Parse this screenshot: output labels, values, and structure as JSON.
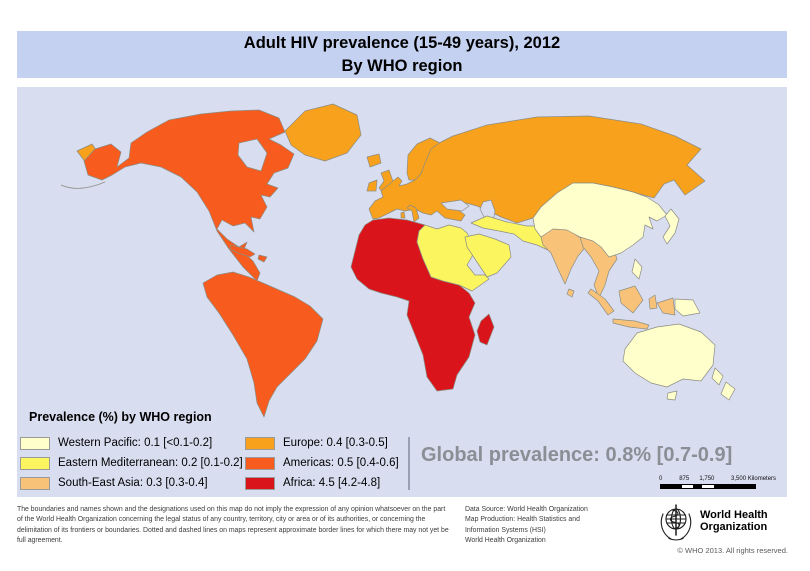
{
  "title": {
    "line1": "Adult HIV prevalence (15-49 years), 2012",
    "line2": "By WHO region"
  },
  "legend": {
    "title": "Prevalence (%) by WHO region",
    "columns": [
      [
        {
          "label": "Western Pacific: 0.1 [<0.1-0.2]",
          "color_key": "western_pacific"
        },
        {
          "label": "Eastern Mediterranean: 0.2 [0.1-0.2]",
          "color_key": "eastern_mediterranean"
        },
        {
          "label": "South-East Asia: 0.3 [0.3-0.4]",
          "color_key": "south_east_asia"
        }
      ],
      [
        {
          "label": "Europe: 0.4 [0.3-0.5]",
          "color_key": "europe"
        },
        {
          "label": "Americas: 0.5 [0.4-0.6]",
          "color_key": "americas"
        },
        {
          "label": "Africa: 4.5 [4.2-4.8]",
          "color_key": "africa"
        }
      ]
    ]
  },
  "global_prevalence": "Global prevalence: 0.8% [0.7-0.9]",
  "scalebar": {
    "labels": [
      "0",
      "875",
      "1,750",
      "3,500 Kilometers"
    ]
  },
  "footer": {
    "disclaimer": "The boundaries and names shown and the designations used on this map do not imply the expression of any opinion whatsoever on the part of the World Health Organization concerning the legal status of any country, territory, city or area or of its authorities, or concerning the delimitation of its frontiers or boundaries. Dotted and dashed lines on maps represent approximate border lines for which there may not yet be full agreement.",
    "data_source": "Data Source: World Health Organization\nMap Production: Health Statistics and\nInformation Systems (HSI)\nWorld Health Organization",
    "who_name": "World Health\nOrganization",
    "copyright": "© WHO 2013. All rights reserved."
  },
  "colors": {
    "title_bar": "#C4D1F0",
    "ocean": "#D8DDF0",
    "land_border": "#8D8D84",
    "western_pacific": "#FFFFCC",
    "eastern_mediterranean": "#FBF65F",
    "south_east_asia": "#F8C378",
    "europe": "#F7A11C",
    "americas": "#F75B1D",
    "africa": "#D9141A",
    "global_text": "#8A8F96"
  },
  "chart_data": {
    "type": "choropleth_map",
    "title": "Adult HIV prevalence (15-49 years), 2012 — By WHO region",
    "unit": "Adult HIV prevalence (%), ages 15-49",
    "year": 2012,
    "regions": [
      {
        "region": "Western Pacific",
        "value": 0.1,
        "uncertainty_range": "<0.1-0.2"
      },
      {
        "region": "Eastern Mediterranean",
        "value": 0.2,
        "uncertainty_range": "0.1-0.2"
      },
      {
        "region": "South-East Asia",
        "value": 0.3,
        "uncertainty_range": "0.3-0.4"
      },
      {
        "region": "Europe",
        "value": 0.4,
        "uncertainty_range": "0.3-0.5"
      },
      {
        "region": "Americas",
        "value": 0.5,
        "uncertainty_range": "0.4-0.6"
      },
      {
        "region": "Africa",
        "value": 4.5,
        "uncertainty_range": "4.2-4.8"
      }
    ],
    "global": {
      "value": 0.8,
      "uncertainty_range": "0.7-0.9"
    },
    "legend_position": "bottom-left",
    "scalebar_km": [
      0,
      875,
      1750,
      3500
    ]
  }
}
